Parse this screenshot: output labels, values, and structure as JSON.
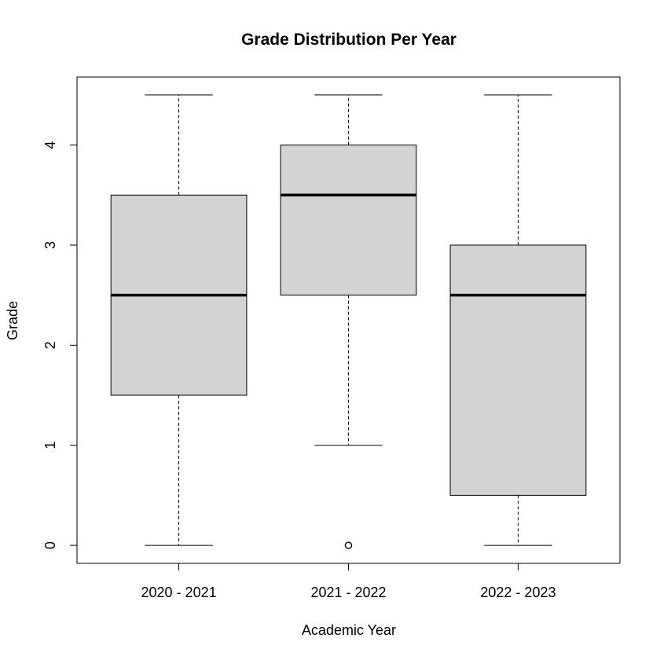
{
  "chart_data": {
    "type": "boxplot",
    "title": "Grade Distribution Per Year",
    "xlabel": "Academic Year",
    "ylabel": "Grade",
    "ylim": [
      -0.18,
      4.68
    ],
    "yticks": [
      0,
      1,
      2,
      3,
      4
    ],
    "categories": [
      "2020 - 2021",
      "2021 - 2022",
      "2022 - 2023"
    ],
    "boxes": [
      {
        "category": "2020 - 2021",
        "whisker_low": 0,
        "q1": 1.5,
        "median": 2.5,
        "q3": 3.5,
        "whisker_high": 4.5,
        "outliers": []
      },
      {
        "category": "2021 - 2022",
        "whisker_low": 1,
        "q1": 2.5,
        "median": 3.5,
        "q3": 4.0,
        "whisker_high": 4.5,
        "outliers": [
          0
        ]
      },
      {
        "category": "2022 - 2023",
        "whisker_low": 0,
        "q1": 0.5,
        "median": 2.5,
        "q3": 3.0,
        "whisker_high": 4.5,
        "outliers": []
      }
    ],
    "box_fill": "#d3d3d3",
    "grid": false,
    "legend": "none"
  }
}
